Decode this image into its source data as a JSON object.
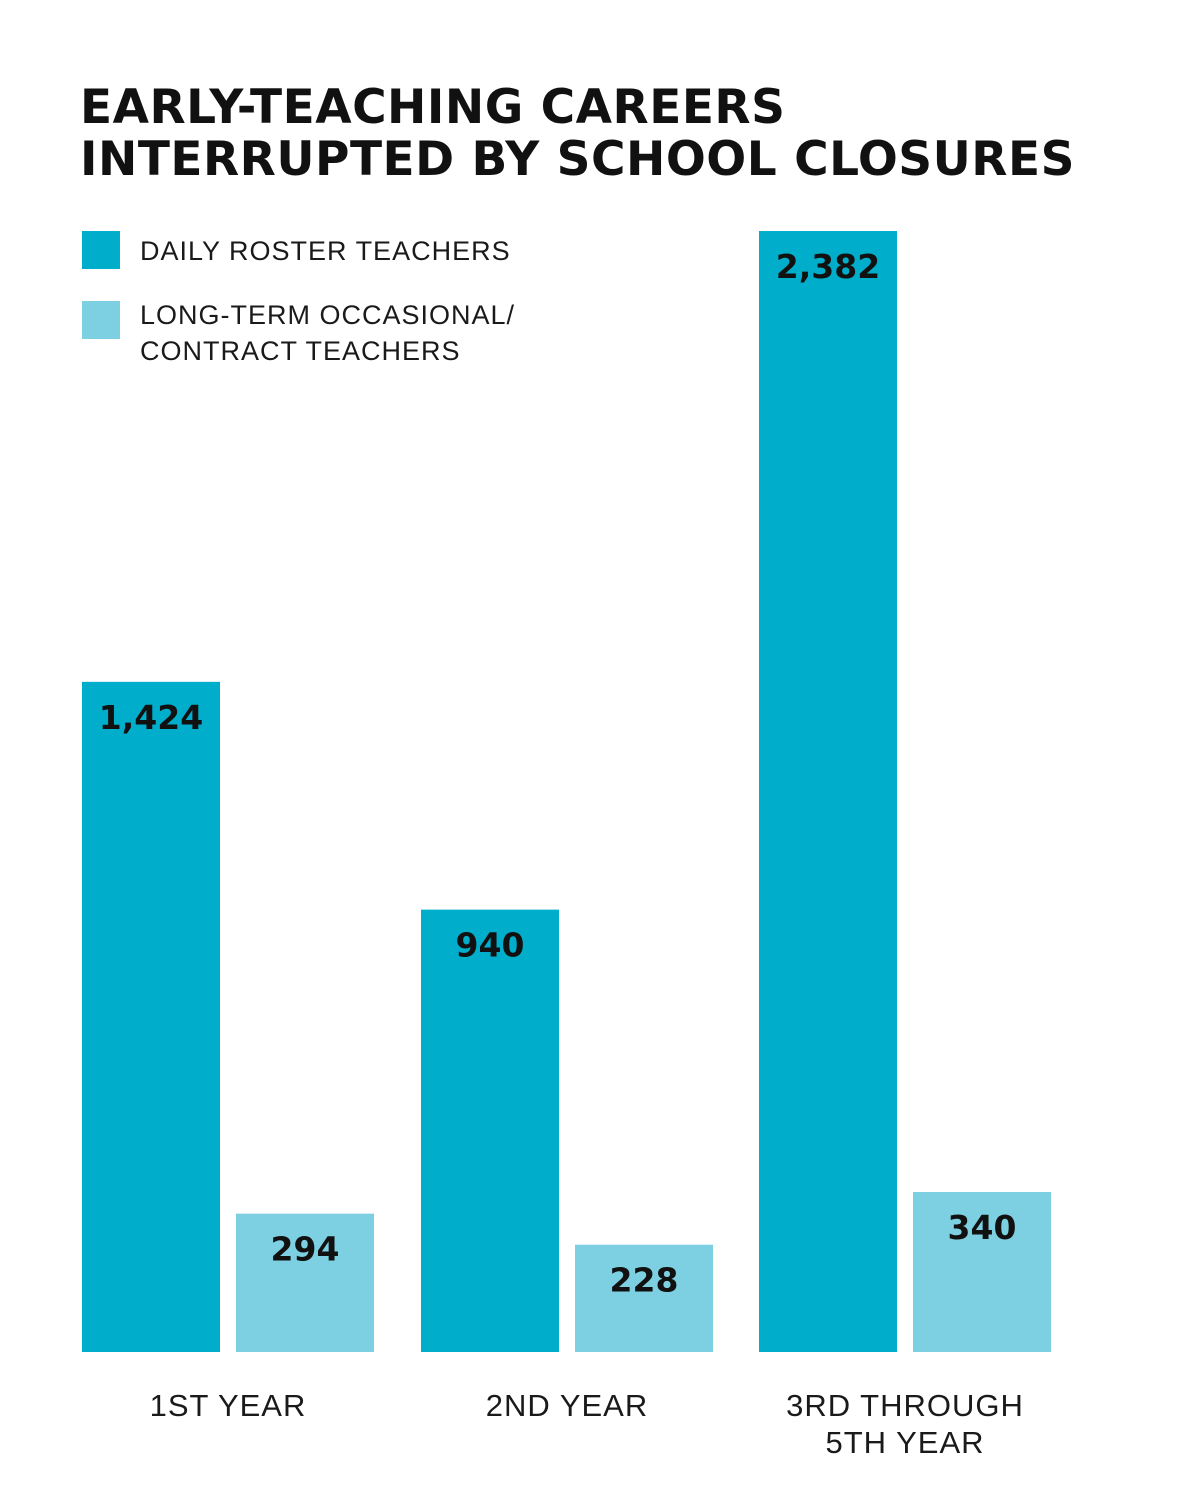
{
  "title": {
    "line1": "EARLY-TEACHING CAREERS",
    "line2": "INTERRUPTED BY SCHOOL CLOSURES"
  },
  "legend": {
    "daily": "DAILY ROSTER TEACHERS",
    "lto_line1": "LONG-TERM OCCASIONAL/",
    "lto_line2": "CONTRACT TEACHERS"
  },
  "colors": {
    "daily": "#00aecb",
    "lto": "#7dd0e1"
  },
  "chart_data": {
    "type": "bar",
    "categories": [
      [
        "1ST YEAR"
      ],
      [
        "2ND YEAR"
      ],
      [
        "3RD THROUGH",
        "5TH YEAR"
      ]
    ],
    "series": [
      {
        "name": "DAILY ROSTER TEACHERS",
        "values": [
          1424,
          940,
          2382
        ],
        "labels": [
          "1,424",
          "940",
          "2,382"
        ]
      },
      {
        "name": "LONG-TERM OCCASIONAL/ CONTRACT TEACHERS",
        "values": [
          294,
          228,
          340
        ],
        "labels": [
          "294",
          "228",
          "340"
        ]
      }
    ],
    "title": "EARLY-TEACHING CAREERS INTERRUPTED BY SCHOOL CLOSURES",
    "xlabel": "",
    "ylabel": "",
    "ylim": [
      0,
      2382
    ],
    "grid": false,
    "legend_position": "top-left"
  }
}
